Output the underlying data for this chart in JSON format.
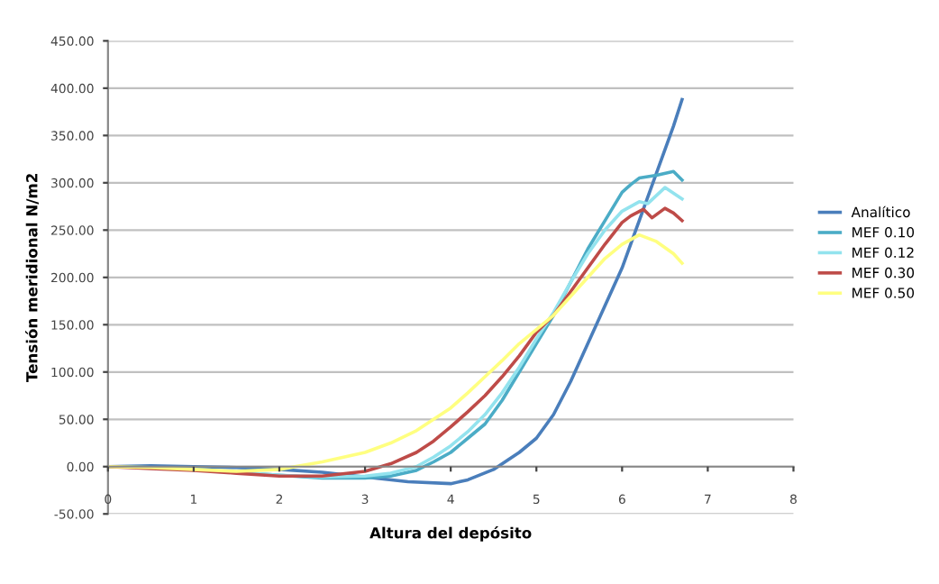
{
  "chart_data": {
    "type": "line",
    "xlabel": "Altura del depósito",
    "ylabel": "Tensión meridional N/m2",
    "xlim": [
      0,
      8
    ],
    "xticks": [
      0,
      1,
      2,
      3,
      4,
      5,
      6,
      7,
      8
    ],
    "ylim": [
      -50,
      450
    ],
    "yticks": [
      {
        "value": -50,
        "label": "-50.00"
      },
      {
        "value": 0,
        "label": "0.00"
      },
      {
        "value": 50,
        "label": "50.00"
      },
      {
        "value": 100,
        "label": "100.00"
      },
      {
        "value": 150,
        "label": "150.00"
      },
      {
        "value": 200,
        "label": "200.00"
      },
      {
        "value": 250,
        "label": "250.00"
      },
      {
        "value": 300,
        "label": "300.00"
      },
      {
        "value": 350,
        "label": "350.00"
      },
      {
        "value": 400,
        "label": "400.00"
      },
      {
        "value": 450,
        "label": "450.00"
      }
    ],
    "grid": "y",
    "legend": "right",
    "marker": "none",
    "line_style": "solid",
    "series": [
      {
        "name": "Analítico",
        "color": "#4a7ebb",
        "x": [
          0,
          0.5,
          1,
          1.5,
          2,
          2.5,
          3,
          3.5,
          4,
          4.2,
          4.5,
          4.8,
          5,
          5.2,
          5.4,
          5.6,
          5.8,
          6,
          6.2,
          6.4,
          6.6,
          6.7
        ],
        "values": [
          0,
          1,
          0,
          -1,
          -3,
          -6,
          -11,
          -16,
          -18,
          -14,
          -3,
          15,
          30,
          55,
          90,
          130,
          170,
          210,
          260,
          310,
          360,
          388
        ]
      },
      {
        "name": "MEF 0.10",
        "color": "#4bacc6",
        "x": [
          0,
          0.5,
          1,
          1.5,
          2,
          2.5,
          3,
          3.3,
          3.6,
          3.8,
          4,
          4.2,
          4.4,
          4.6,
          4.8,
          5,
          5.2,
          5.4,
          5.6,
          5.8,
          6,
          6.1,
          6.2,
          6.4,
          6.6,
          6.7
        ],
        "values": [
          0,
          -1,
          -3,
          -6,
          -9,
          -12,
          -12,
          -10,
          -4,
          5,
          15,
          30,
          45,
          70,
          100,
          130,
          160,
          195,
          230,
          260,
          290,
          298,
          305,
          308,
          312,
          303
        ]
      },
      {
        "name": "MEF 0.12",
        "color": "#93e3ee",
        "x": [
          1.5,
          2,
          2.5,
          3,
          3.3,
          3.6,
          3.8,
          4,
          4.2,
          4.4,
          4.6,
          4.8,
          5,
          5.2,
          5.4,
          5.6,
          5.8,
          6,
          6.2,
          6.3,
          6.5,
          6.7
        ],
        "values": [
          -6,
          -9,
          -11,
          -10,
          -7,
          0,
          10,
          22,
          37,
          55,
          78,
          105,
          135,
          163,
          195,
          225,
          250,
          270,
          280,
          278,
          295,
          283
        ]
      },
      {
        "name": "MEF 0.30",
        "color": "#be4b48",
        "x": [
          0,
          0.5,
          1,
          1.5,
          2,
          2.5,
          3,
          3.3,
          3.6,
          3.8,
          4,
          4.2,
          4.4,
          4.6,
          4.8,
          5,
          5.2,
          5.4,
          5.6,
          5.8,
          6,
          6.1,
          6.25,
          6.35,
          6.5,
          6.6,
          6.7
        ],
        "values": [
          0,
          -2,
          -4,
          -7,
          -10,
          -10,
          -5,
          3,
          15,
          27,
          42,
          58,
          75,
          95,
          117,
          142,
          160,
          185,
          210,
          235,
          258,
          265,
          272,
          263,
          273,
          268,
          260
        ]
      },
      {
        "name": "MEF 0.50",
        "color": "#ffff80",
        "x": [
          0,
          0.5,
          1,
          1.5,
          2,
          2.5,
          3,
          3.3,
          3.6,
          3.8,
          4,
          4.2,
          4.4,
          4.6,
          4.8,
          5,
          5.2,
          5.4,
          5.6,
          5.8,
          6,
          6.2,
          6.4,
          6.6,
          6.7
        ],
        "values": [
          0,
          -1,
          -3,
          -5,
          -3,
          5,
          15,
          25,
          38,
          50,
          62,
          78,
          95,
          112,
          130,
          145,
          160,
          180,
          200,
          220,
          235,
          245,
          238,
          225,
          215
        ]
      }
    ]
  }
}
